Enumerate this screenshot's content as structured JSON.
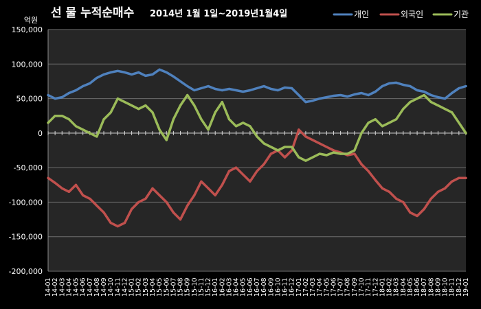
{
  "chart_data": {
    "type": "line",
    "title": "선 물 누적순매수",
    "subtitle": "2014년 1월 1일~2019년1월4일",
    "y_unit": "억원",
    "ylim": [
      -200000,
      150000
    ],
    "y_ticks": [
      150000,
      100000,
      50000,
      0,
      -50000,
      -100000,
      -150000,
      -200000
    ],
    "y_tick_labels": [
      "150,000",
      "100,000",
      "50,000",
      "0",
      "-50,000",
      "-100,000",
      "-150,000",
      "-200,000"
    ],
    "grid": true,
    "legend_position": "top-right",
    "x_tick_labels": [
      "14-01",
      "14-02",
      "14-03",
      "14-04",
      "14-05",
      "14-06",
      "14-07",
      "14-08",
      "14-09",
      "14-10",
      "14-11",
      "14-12",
      "15-01",
      "15-02",
      "15-03",
      "15-04",
      "15-05",
      "15-06",
      "15-07",
      "15-08",
      "15-09",
      "15-10",
      "15-11",
      "15-12",
      "16-01",
      "16-02",
      "16-03",
      "16-04",
      "16-05",
      "16-06",
      "16-07",
      "16-08",
      "16-09",
      "16-10",
      "16-11",
      "16-12",
      "17-01",
      "17-02",
      "17-03",
      "17-04",
      "17-05",
      "17-06",
      "17-07",
      "17-08",
      "17-09",
      "17-10",
      "17-11",
      "17-12",
      "18-01",
      "18-02",
      "18-03",
      "18-04",
      "18-05",
      "18-06",
      "18-07",
      "18-08",
      "18-09",
      "18-10",
      "18-11",
      "18-12",
      "19-01"
    ],
    "series": [
      {
        "name": "개인",
        "color": "#4f81bd",
        "values": [
          55000,
          50000,
          52000,
          58000,
          62000,
          68000,
          72000,
          80000,
          85000,
          88000,
          90000,
          88000,
          85000,
          88000,
          83000,
          85000,
          92000,
          88000,
          82000,
          75000,
          68000,
          62000,
          65000,
          68000,
          64000,
          62000,
          64000,
          62000,
          60000,
          62000,
          65000,
          68000,
          64000,
          62000,
          66000,
          65000,
          55000,
          45000,
          47000,
          50000,
          52000,
          54000,
          55000,
          53000,
          56000,
          58000,
          55000,
          60000,
          68000,
          72000,
          73000,
          70000,
          68000,
          62000,
          60000,
          55000,
          52000,
          50000,
          58000,
          65000,
          68000
        ]
      },
      {
        "name": "외국인",
        "color": "#c0504d",
        "values": [
          -65000,
          -72000,
          -80000,
          -85000,
          -75000,
          -90000,
          -95000,
          -105000,
          -115000,
          -130000,
          -135000,
          -130000,
          -110000,
          -100000,
          -95000,
          -80000,
          -90000,
          -100000,
          -115000,
          -125000,
          -105000,
          -90000,
          -70000,
          -80000,
          -90000,
          -75000,
          -55000,
          -50000,
          -60000,
          -70000,
          -55000,
          -45000,
          -30000,
          -25000,
          -35000,
          -25000,
          5000,
          -5000,
          -10000,
          -15000,
          -20000,
          -25000,
          -28000,
          -32000,
          -30000,
          -45000,
          -55000,
          -68000,
          -80000,
          -85000,
          -95000,
          -100000,
          -115000,
          -120000,
          -110000,
          -95000,
          -85000,
          -80000,
          -70000,
          -65000,
          -65000
        ]
      },
      {
        "name": "기관",
        "color": "#9bbb59",
        "values": [
          15000,
          25000,
          25000,
          20000,
          10000,
          5000,
          0,
          -5000,
          20000,
          30000,
          50000,
          45000,
          40000,
          35000,
          40000,
          30000,
          5000,
          -10000,
          20000,
          40000,
          55000,
          40000,
          20000,
          5000,
          30000,
          45000,
          20000,
          10000,
          15000,
          10000,
          -5000,
          -15000,
          -20000,
          -25000,
          -20000,
          -20000,
          -35000,
          -40000,
          -35000,
          -30000,
          -32000,
          -28000,
          -30000,
          -30000,
          -25000,
          0,
          15000,
          20000,
          10000,
          15000,
          20000,
          35000,
          45000,
          50000,
          55000,
          45000,
          40000,
          35000,
          30000,
          15000,
          0
        ]
      }
    ]
  }
}
